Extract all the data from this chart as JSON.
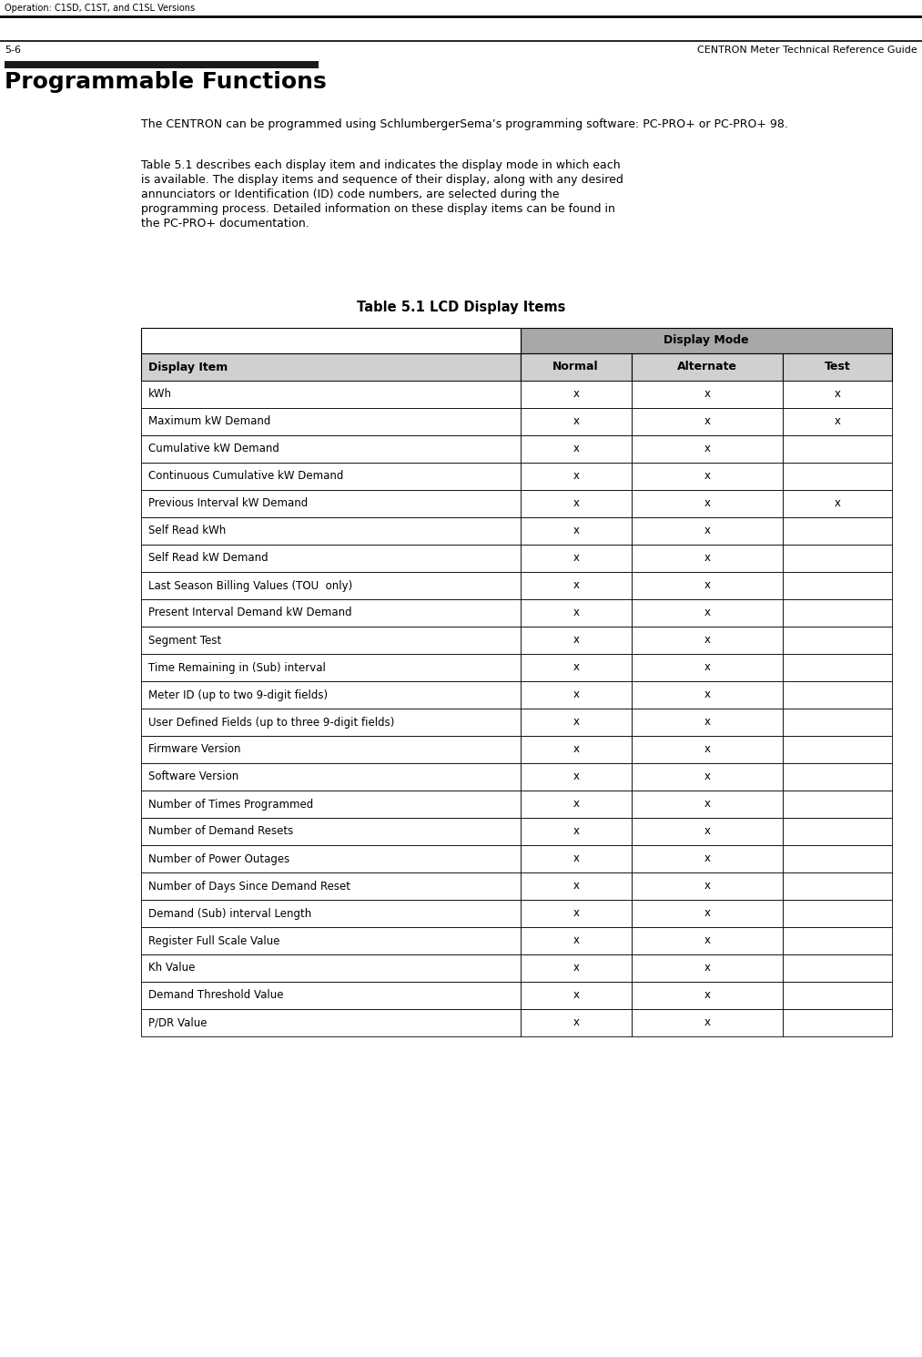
{
  "header_top": "Operation: C1SD, C1ST, and C1SL Versions",
  "footer_left": "5-6",
  "footer_right": "CENTRON Meter Technical Reference Guide",
  "section_title": "Programmable Functions",
  "para1": "The CENTRON can be programmed using SchlumbergerSema’s programming software: PC-PRO+ or PC-PRO+ 98.",
  "para2_lines": [
    "Table 5.1 describes each display item and indicates the display mode in which each",
    "is available. The display items and sequence of their display, along with any desired",
    "annunciators or Identification (ID) code numbers, are selected during the",
    "programming process. Detailed information on these display items can be found in",
    "the PC-PRO+ documentation."
  ],
  "table_title": "Table 5.1 LCD Display Items",
  "col_header_span": "Display Mode",
  "col_headers": [
    "Display Item",
    "Normal",
    "Alternate",
    "Test"
  ],
  "rows": [
    [
      "kWh",
      "x",
      "x",
      "x"
    ],
    [
      "Maximum kW Demand",
      "x",
      "x",
      "x"
    ],
    [
      "Cumulative kW Demand",
      "x",
      "x",
      ""
    ],
    [
      "Continuous Cumulative kW Demand",
      "x",
      "x",
      ""
    ],
    [
      "Previous Interval kW Demand",
      "x",
      "x",
      "x"
    ],
    [
      "Self Read kWh",
      "x",
      "x",
      ""
    ],
    [
      "Self Read kW Demand",
      "x",
      "x",
      ""
    ],
    [
      "Last Season Billing Values (TOU  only)",
      "x",
      "x",
      ""
    ],
    [
      "Present Interval Demand kW Demand",
      "x",
      "x",
      ""
    ],
    [
      "Segment Test",
      "x",
      "x",
      ""
    ],
    [
      "Time Remaining in (Sub) interval",
      "x",
      "x",
      ""
    ],
    [
      "Meter ID (up to two 9-digit fields)",
      "x",
      "x",
      ""
    ],
    [
      "User Defined Fields (up to three 9-digit fields)",
      "x",
      "x",
      ""
    ],
    [
      "Firmware Version",
      "x",
      "x",
      ""
    ],
    [
      "Software Version",
      "x",
      "x",
      ""
    ],
    [
      "Number of Times Programmed",
      "x",
      "x",
      ""
    ],
    [
      "Number of Demand Resets",
      "x",
      "x",
      ""
    ],
    [
      "Number of Power Outages",
      "x",
      "x",
      ""
    ],
    [
      "Number of Days Since Demand Reset",
      "x",
      "x",
      ""
    ],
    [
      "Demand (Sub) interval Length",
      "x",
      "x",
      ""
    ],
    [
      "Register Full Scale Value",
      "x",
      "x",
      ""
    ],
    [
      "Kh Value",
      "x",
      "x",
      ""
    ],
    [
      "Demand Threshold Value",
      "x",
      "x",
      ""
    ],
    [
      "P/DR Value",
      "x",
      "x",
      ""
    ]
  ],
  "bg_color": "#ffffff",
  "display_mode_bg": "#a8a8a8",
  "col_header_bg": "#d0d0d0",
  "figw": 10.13,
  "figh": 14.9,
  "dpi": 100
}
